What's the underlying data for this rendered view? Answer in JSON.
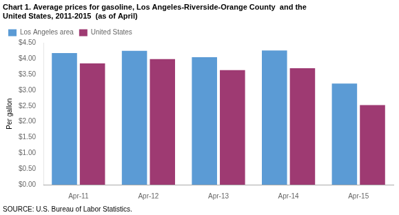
{
  "chart_data": {
    "type": "bar",
    "title": [
      "Chart 1. Average prices for gasoline, Los Angeles-Riverside-Orange County  and the",
      "United States, 2011-2015  (as of April)"
    ],
    "ylabel": "Per gallon",
    "source": "SOURCE: U.S. Bureau of Labor Statistics.",
    "categories": [
      "Apr-11",
      "Apr-12",
      "Apr-13",
      "Apr-14",
      "Apr-15"
    ],
    "series": [
      {
        "name": "Los Angeles area",
        "color": "#5B9BD5",
        "values": [
          4.18,
          4.25,
          4.05,
          4.26,
          3.21
        ]
      },
      {
        "name": "United States",
        "color": "#9E3A72",
        "values": [
          3.85,
          3.99,
          3.64,
          3.7,
          2.53
        ]
      }
    ],
    "ylim": [
      0.0,
      4.5
    ],
    "yticks": [
      {
        "value": 0.0,
        "label": "$0.00"
      },
      {
        "value": 0.5,
        "label": "$0.50"
      },
      {
        "value": 1.0,
        "label": "$1.00"
      },
      {
        "value": 1.5,
        "label": "$1.50"
      },
      {
        "value": 2.0,
        "label": "$2.00"
      },
      {
        "value": 2.5,
        "label": "$2.50"
      },
      {
        "value": 3.0,
        "label": "$3.00"
      },
      {
        "value": 3.5,
        "label": "$3.50"
      },
      {
        "value": 4.0,
        "label": "$4.00"
      },
      {
        "value": 4.5,
        "label": "$4.50"
      }
    ],
    "grid": false,
    "legend": "upper left"
  }
}
